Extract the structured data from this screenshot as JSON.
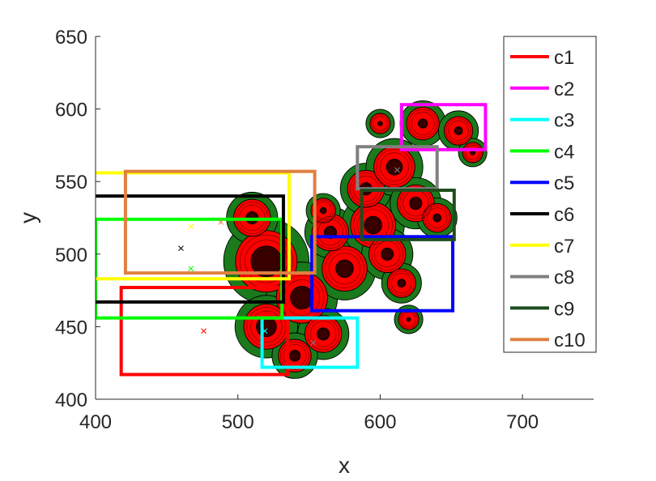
{
  "chart_data": {
    "type": "contour",
    "xlabel": "x",
    "ylabel": "y",
    "xlim": [
      400,
      750
    ],
    "ylim": [
      400,
      650
    ],
    "xticks": [
      400,
      500,
      600,
      700
    ],
    "yticks": [
      400,
      450,
      500,
      550,
      600,
      650
    ],
    "grid": false,
    "legend_position": "top-right",
    "contour_colors": {
      "outer": "#1b7a1b",
      "middle": "#ff0000",
      "inner": "#3a0000",
      "line": "#000000"
    },
    "blobs": [
      {
        "x": 520,
        "y": 495,
        "r": 30,
        "s": 0.9
      },
      {
        "x": 545,
        "y": 470,
        "r": 25,
        "s": 0.8
      },
      {
        "x": 520,
        "y": 450,
        "r": 22,
        "s": 0.8
      },
      {
        "x": 510,
        "y": 525,
        "r": 18,
        "s": 0.6
      },
      {
        "x": 560,
        "y": 445,
        "r": 18,
        "s": 0.6
      },
      {
        "x": 540,
        "y": 430,
        "r": 16,
        "s": 0.6
      },
      {
        "x": 575,
        "y": 490,
        "r": 22,
        "s": 0.7
      },
      {
        "x": 565,
        "y": 515,
        "r": 18,
        "s": 0.6
      },
      {
        "x": 595,
        "y": 520,
        "r": 22,
        "s": 0.7
      },
      {
        "x": 605,
        "y": 500,
        "r": 18,
        "s": 0.6
      },
      {
        "x": 590,
        "y": 545,
        "r": 18,
        "s": 0.6
      },
      {
        "x": 610,
        "y": 560,
        "r": 20,
        "s": 0.7
      },
      {
        "x": 625,
        "y": 535,
        "r": 18,
        "s": 0.6
      },
      {
        "x": 640,
        "y": 525,
        "r": 14,
        "s": 0.5
      },
      {
        "x": 615,
        "y": 480,
        "r": 14,
        "s": 0.5
      },
      {
        "x": 630,
        "y": 590,
        "r": 16,
        "s": 0.5
      },
      {
        "x": 655,
        "y": 585,
        "r": 14,
        "s": 0.5
      },
      {
        "x": 665,
        "y": 570,
        "r": 10,
        "s": 0.4
      },
      {
        "x": 600,
        "y": 590,
        "r": 10,
        "s": 0.4
      },
      {
        "x": 620,
        "y": 455,
        "r": 10,
        "s": 0.35
      },
      {
        "x": 560,
        "y": 530,
        "r": 12,
        "s": 0.45
      }
    ],
    "boxes": [
      {
        "name": "c1",
        "color": "#ff0000",
        "x1": 418,
        "x2": 535,
        "y1": 417,
        "y2": 477
      },
      {
        "name": "c2",
        "color": "#ff00ff",
        "x1": 615,
        "x2": 674,
        "y1": 572,
        "y2": 603
      },
      {
        "name": "c3",
        "color": "#00ffff",
        "x1": 517,
        "x2": 584,
        "y1": 422,
        "y2": 456
      },
      {
        "name": "c4",
        "color": "#00ff00",
        "x1": 400,
        "x2": 531,
        "y1": 456,
        "y2": 524
      },
      {
        "name": "c5",
        "color": "#0000ff",
        "x1": 552,
        "x2": 651,
        "y1": 461,
        "y2": 512
      },
      {
        "name": "c6",
        "color": "#000000",
        "x1": 395,
        "x2": 532,
        "y1": 467,
        "y2": 540
      },
      {
        "name": "c7",
        "color": "#ffff00",
        "x1": 395,
        "x2": 536,
        "y1": 483,
        "y2": 556
      },
      {
        "name": "c8",
        "color": "#808080",
        "x1": 584,
        "x2": 640,
        "y1": 545,
        "y2": 574
      },
      {
        "name": "c9",
        "color": "#1d4d1d",
        "x1": 587,
        "x2": 652,
        "y1": 510,
        "y2": 544
      },
      {
        "name": "c10",
        "color": "#e08040",
        "x1": 421,
        "x2": 554,
        "y1": 487,
        "y2": 557
      }
    ],
    "markers": [
      {
        "color": "#ff0000",
        "x": 476,
        "y": 447
      },
      {
        "color": "#00ffff",
        "x": 519,
        "y": 447
      },
      {
        "color": "#00ff00",
        "x": 467,
        "y": 490
      },
      {
        "color": "#ffff00",
        "x": 467,
        "y": 519
      },
      {
        "color": "#e08040",
        "x": 488,
        "y": 522
      },
      {
        "color": "#000000",
        "x": 460,
        "y": 504
      },
      {
        "color": "#808080",
        "x": 553,
        "y": 439
      },
      {
        "color": "#808080",
        "x": 612,
        "y": 558
      }
    ]
  }
}
